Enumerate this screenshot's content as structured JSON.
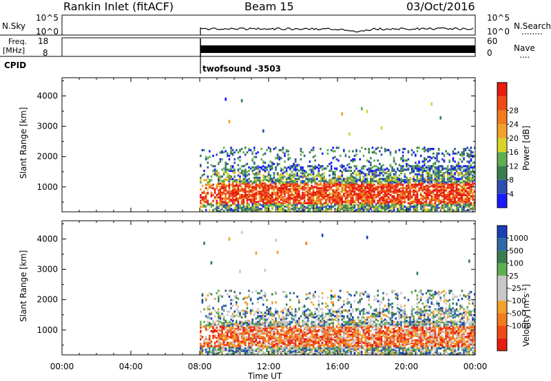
{
  "header": {
    "station": "Rankin Inlet (fitACF)",
    "beam": "Beam 15",
    "date": "03/Oct/2016"
  },
  "nsky_panel": {
    "left_label": "N.Sky",
    "left_ticks": [
      "10^5",
      "10^0"
    ],
    "right_ticks": [
      "10^5",
      "10^0"
    ],
    "right_label": "N.Search",
    "right_dots": "........"
  },
  "freq_panel": {
    "left_label_line1": "Freq.",
    "left_label_line2": "[MHz]",
    "left_ticks": [
      "18",
      "8"
    ],
    "right_ticks": [
      "60",
      "0"
    ],
    "right_label": "Nave",
    "right_dots": "...."
  },
  "cpid": {
    "label": "CPID",
    "program": "twofsound -3503"
  },
  "time_axis": {
    "ticks": [
      "00:00",
      "04:00",
      "08:00",
      "12:00",
      "16:00",
      "20:00",
      "00:00"
    ],
    "label": "Time UT"
  },
  "colors": {
    "power_scale": [
      "#1a1aff",
      "#2e4fb0",
      "#3b7c4e",
      "#5fae4f",
      "#d8d52a",
      "#f2a12b",
      "#f27a1f",
      "#ee4a16",
      "#e61c10"
    ],
    "velocity_scale": [
      "#e61c10",
      "#ee4a16",
      "#f27a1f",
      "#f2a12b",
      "#c8c8c8",
      "#c8c8c8",
      "#5fae4f",
      "#3b7c4e",
      "#2e6aa6",
      "#1a3fb5"
    ]
  },
  "chart_data": [
    {
      "type": "heatmap",
      "name": "power",
      "ylabel": "Slant Range [km]",
      "yticks": [
        "1000",
        "2000",
        "3000",
        "4000"
      ],
      "ylim": [
        180,
        4600
      ],
      "xlim_hours": [
        0,
        24
      ],
      "data_start_hour": 8,
      "colorbar_label": "Power [dB]",
      "colorbar_ticks": [
        "4",
        "8",
        "12",
        "16",
        "20",
        "24",
        "28"
      ]
    },
    {
      "type": "heatmap",
      "name": "velocity",
      "ylabel": "Slant Range [km]",
      "yticks": [
        "1000",
        "2000",
        "3000",
        "4000"
      ],
      "ylim": [
        180,
        4600
      ],
      "xlim_hours": [
        0,
        24
      ],
      "data_start_hour": 8,
      "colorbar_label": "Velocity [m s",
      "colorbar_label_sup": "-1",
      "colorbar_label_end": "]",
      "colorbar_ticks": [
        "1000",
        "500",
        "100",
        "25",
        "-25",
        "-100",
        "-500",
        "-1000"
      ]
    }
  ]
}
